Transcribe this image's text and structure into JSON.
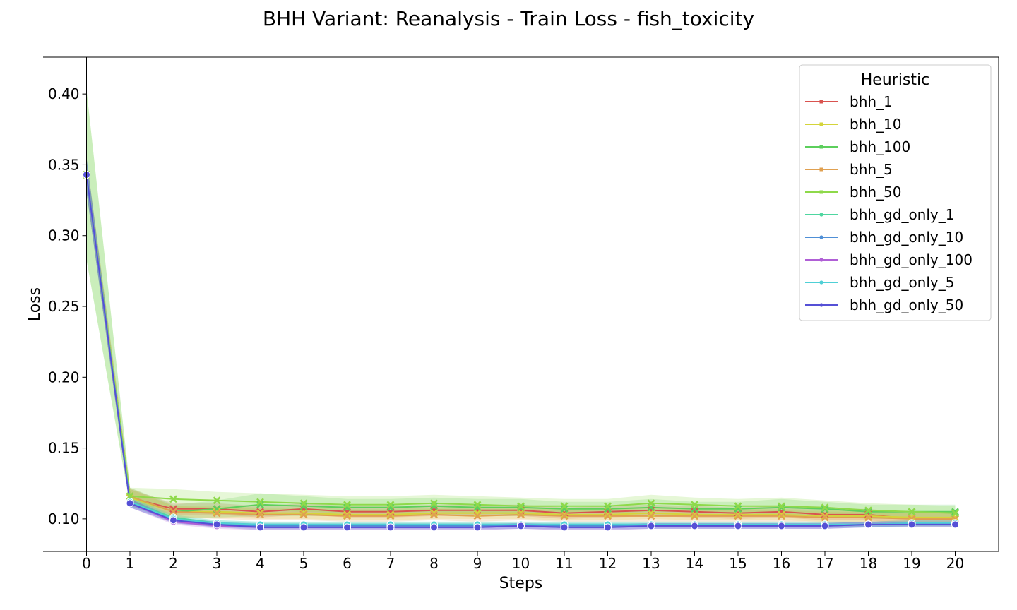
{
  "chart_data": {
    "type": "line",
    "title": "BHH Variant: Reanalysis - Train Loss - fish_toxicity",
    "xlabel": "Steps",
    "ylabel": "Loss",
    "xlim": [
      -1,
      21
    ],
    "ylim": [
      0.077,
      0.426
    ],
    "x_ticks": [
      0,
      1,
      2,
      3,
      4,
      5,
      6,
      7,
      8,
      9,
      10,
      11,
      12,
      13,
      14,
      15,
      16,
      17,
      18,
      19,
      20
    ],
    "y_ticks": [
      0.1,
      0.15,
      0.2,
      0.25,
      0.3,
      0.35,
      0.4
    ],
    "grid": false,
    "legend": {
      "title": "Heuristic",
      "placement": "upper right"
    },
    "x": [
      0,
      1,
      2,
      3,
      4,
      5,
      6,
      7,
      8,
      9,
      10,
      11,
      12,
      13,
      14,
      15,
      16,
      17,
      18,
      19,
      20
    ],
    "series": [
      {
        "name": "bhh_1",
        "color": "#d9534f",
        "marker": "x",
        "values": [
          0.343,
          0.115,
          0.107,
          0.107,
          0.105,
          0.107,
          0.105,
          0.105,
          0.106,
          0.106,
          0.106,
          0.104,
          0.105,
          0.106,
          0.105,
          0.104,
          0.105,
          0.103,
          0.103,
          0.1,
          0.1
        ],
        "band": [
          0.012,
          0.006,
          0.004,
          0.004,
          0.004,
          0.004,
          0.004,
          0.004,
          0.004,
          0.004,
          0.004,
          0.004,
          0.004,
          0.004,
          0.004,
          0.004,
          0.004,
          0.004,
          0.004,
          0.004,
          0.004
        ]
      },
      {
        "name": "bhh_10",
        "color": "#d4d43a",
        "marker": "x",
        "values": [
          0.343,
          0.115,
          0.105,
          0.105,
          0.104,
          0.104,
          0.103,
          0.103,
          0.104,
          0.104,
          0.104,
          0.103,
          0.103,
          0.104,
          0.103,
          0.103,
          0.103,
          0.102,
          0.102,
          0.101,
          0.101
        ],
        "band": [
          0.012,
          0.006,
          0.004,
          0.004,
          0.004,
          0.004,
          0.004,
          0.004,
          0.004,
          0.004,
          0.004,
          0.004,
          0.004,
          0.004,
          0.004,
          0.004,
          0.004,
          0.004,
          0.004,
          0.004,
          0.004
        ]
      },
      {
        "name": "bhh_100",
        "color": "#5ccf5c",
        "marker": "x",
        "values": [
          0.343,
          0.116,
          0.105,
          0.107,
          0.11,
          0.109,
          0.108,
          0.108,
          0.109,
          0.108,
          0.108,
          0.107,
          0.107,
          0.108,
          0.107,
          0.107,
          0.108,
          0.107,
          0.105,
          0.105,
          0.105
        ],
        "band": [
          0.06,
          0.006,
          0.005,
          0.006,
          0.008,
          0.007,
          0.006,
          0.006,
          0.006,
          0.006,
          0.006,
          0.005,
          0.005,
          0.006,
          0.005,
          0.005,
          0.006,
          0.005,
          0.005,
          0.005,
          0.005
        ]
      },
      {
        "name": "bhh_5",
        "color": "#e0a050",
        "marker": "x",
        "values": [
          0.343,
          0.116,
          0.105,
          0.104,
          0.103,
          0.103,
          0.102,
          0.102,
          0.103,
          0.102,
          0.103,
          0.102,
          0.102,
          0.102,
          0.102,
          0.102,
          0.102,
          0.101,
          0.101,
          0.1,
          0.1
        ],
        "band": [
          0.012,
          0.006,
          0.004,
          0.004,
          0.004,
          0.004,
          0.004,
          0.004,
          0.004,
          0.004,
          0.004,
          0.004,
          0.004,
          0.004,
          0.004,
          0.004,
          0.004,
          0.004,
          0.004,
          0.004,
          0.004
        ]
      },
      {
        "name": "bhh_50",
        "color": "#8ed94a",
        "marker": "x",
        "values": [
          0.343,
          0.116,
          0.114,
          0.113,
          0.112,
          0.111,
          0.11,
          0.11,
          0.111,
          0.11,
          0.109,
          0.109,
          0.109,
          0.111,
          0.11,
          0.109,
          0.109,
          0.108,
          0.106,
          0.105,
          0.104
        ],
        "band": [
          0.06,
          0.006,
          0.007,
          0.006,
          0.006,
          0.006,
          0.006,
          0.006,
          0.006,
          0.006,
          0.006,
          0.005,
          0.005,
          0.006,
          0.005,
          0.005,
          0.006,
          0.005,
          0.005,
          0.005,
          0.005
        ]
      },
      {
        "name": "bhh_gd_only_1",
        "color": "#4fd6a0",
        "marker": "o",
        "values": [
          0.343,
          0.112,
          0.101,
          0.097,
          0.096,
          0.096,
          0.096,
          0.096,
          0.096,
          0.096,
          0.096,
          0.096,
          0.096,
          0.096,
          0.096,
          0.096,
          0.096,
          0.096,
          0.096,
          0.096,
          0.096
        ],
        "band": [
          0.012,
          0.003,
          0.002,
          0.002,
          0.002,
          0.002,
          0.002,
          0.002,
          0.002,
          0.002,
          0.002,
          0.002,
          0.002,
          0.002,
          0.002,
          0.002,
          0.002,
          0.002,
          0.002,
          0.002,
          0.002
        ]
      },
      {
        "name": "bhh_gd_only_10",
        "color": "#4f8fd6",
        "marker": "o",
        "values": [
          0.343,
          0.111,
          0.099,
          0.096,
          0.095,
          0.095,
          0.095,
          0.095,
          0.095,
          0.095,
          0.095,
          0.095,
          0.095,
          0.095,
          0.095,
          0.095,
          0.095,
          0.095,
          0.096,
          0.097,
          0.097
        ],
        "band": [
          0.012,
          0.003,
          0.002,
          0.002,
          0.002,
          0.002,
          0.002,
          0.002,
          0.002,
          0.002,
          0.002,
          0.002,
          0.002,
          0.002,
          0.002,
          0.002,
          0.002,
          0.002,
          0.002,
          0.002,
          0.002
        ]
      },
      {
        "name": "bhh_gd_only_100",
        "color": "#b05fd6",
        "marker": "o",
        "values": [
          0.343,
          0.111,
          0.098,
          0.095,
          0.094,
          0.094,
          0.094,
          0.094,
          0.094,
          0.094,
          0.095,
          0.094,
          0.094,
          0.095,
          0.095,
          0.095,
          0.095,
          0.095,
          0.096,
          0.096,
          0.096
        ],
        "band": [
          0.012,
          0.003,
          0.002,
          0.002,
          0.002,
          0.002,
          0.002,
          0.002,
          0.002,
          0.002,
          0.002,
          0.002,
          0.002,
          0.002,
          0.002,
          0.002,
          0.002,
          0.002,
          0.002,
          0.002,
          0.002
        ]
      },
      {
        "name": "bhh_gd_only_5",
        "color": "#4fd0d6",
        "marker": "o",
        "values": [
          0.343,
          0.112,
          0.1,
          0.097,
          0.096,
          0.096,
          0.096,
          0.096,
          0.096,
          0.096,
          0.096,
          0.096,
          0.096,
          0.096,
          0.096,
          0.096,
          0.096,
          0.096,
          0.096,
          0.097,
          0.097
        ],
        "band": [
          0.012,
          0.003,
          0.002,
          0.002,
          0.002,
          0.002,
          0.002,
          0.002,
          0.002,
          0.002,
          0.002,
          0.002,
          0.002,
          0.002,
          0.002,
          0.002,
          0.002,
          0.002,
          0.002,
          0.002,
          0.002
        ]
      },
      {
        "name": "bhh_gd_only_50",
        "color": "#5550d6",
        "marker": "o",
        "values": [
          0.343,
          0.111,
          0.099,
          0.096,
          0.094,
          0.094,
          0.094,
          0.094,
          0.094,
          0.094,
          0.095,
          0.094,
          0.094,
          0.095,
          0.095,
          0.095,
          0.095,
          0.095,
          0.096,
          0.096,
          0.096
        ],
        "band": [
          0.012,
          0.003,
          0.002,
          0.002,
          0.002,
          0.002,
          0.002,
          0.002,
          0.002,
          0.002,
          0.002,
          0.002,
          0.002,
          0.002,
          0.002,
          0.002,
          0.002,
          0.002,
          0.002,
          0.002,
          0.002
        ]
      }
    ]
  }
}
